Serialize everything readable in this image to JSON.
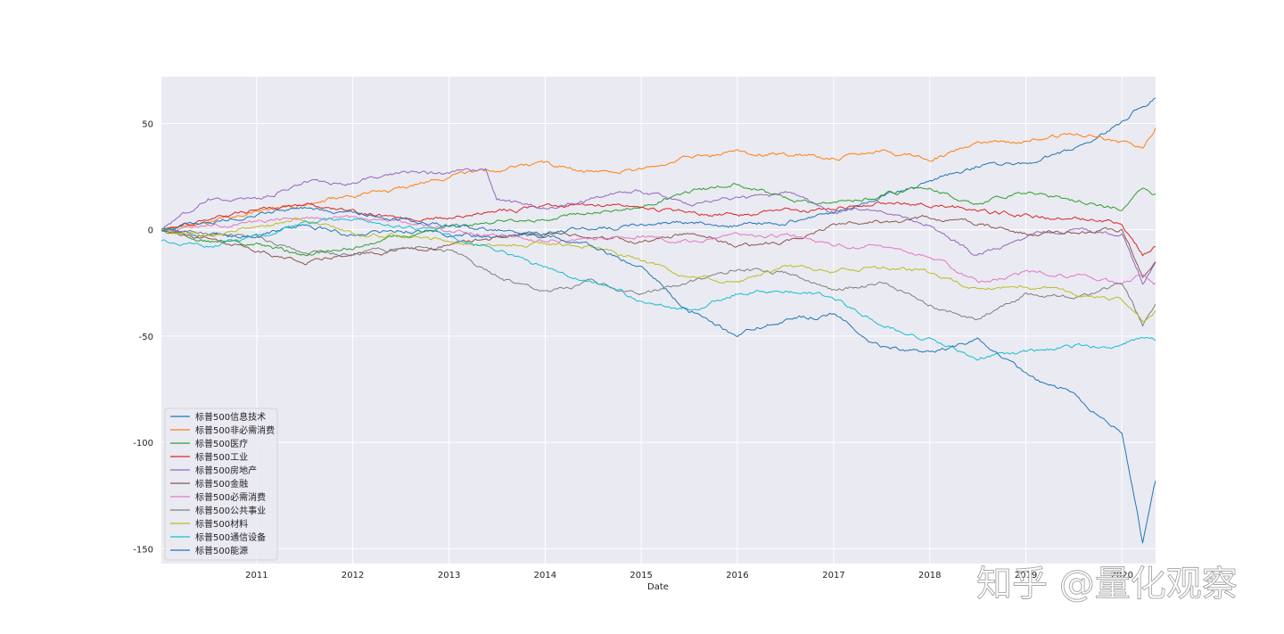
{
  "watermark": "知乎 @量化观察",
  "chart_data": {
    "type": "line",
    "xlabel": "Date",
    "ylabel": "",
    "title": "",
    "x_ticks": [
      "2011",
      "2012",
      "2013",
      "2014",
      "2015",
      "2016",
      "2017",
      "2018",
      "2019",
      "2020"
    ],
    "y_ticks": [
      50,
      0,
      -50,
      -100,
      -150
    ],
    "xlim": [
      "2010-01-04",
      "2020-05-08"
    ],
    "ylim": [
      -157,
      72
    ],
    "grid": true,
    "legend_position": "lower-left",
    "series": [
      {
        "name": "标普500信息技术",
        "color": "#1f77b4",
        "points": [
          [
            "2010-01-04",
            0
          ],
          [
            "2010-07-01",
            -4
          ],
          [
            "2011-01-01",
            -3
          ],
          [
            "2011-07-01",
            2
          ],
          [
            "2012-01-01",
            -2
          ],
          [
            "2012-07-01",
            0
          ],
          [
            "2013-01-01",
            -2
          ],
          [
            "2013-07-01",
            -3
          ],
          [
            "2014-01-01",
            -1
          ],
          [
            "2014-07-01",
            1
          ],
          [
            "2015-01-01",
            2
          ],
          [
            "2015-07-01",
            4
          ],
          [
            "2016-01-01",
            2
          ],
          [
            "2016-07-01",
            4
          ],
          [
            "2017-01-01",
            8
          ],
          [
            "2017-07-01",
            16
          ],
          [
            "2018-01-01",
            23
          ],
          [
            "2018-07-01",
            30
          ],
          [
            "2019-01-01",
            31
          ],
          [
            "2019-07-01",
            38
          ],
          [
            "2020-01-01",
            50
          ],
          [
            "2020-03-01",
            57
          ],
          [
            "2020-05-08",
            62
          ]
        ]
      },
      {
        "name": "标普500非必需消费",
        "color": "#ff7f0e",
        "points": [
          [
            "2010-01-04",
            0
          ],
          [
            "2010-07-01",
            4
          ],
          [
            "2011-01-01",
            9
          ],
          [
            "2011-07-01",
            12
          ],
          [
            "2012-01-01",
            16
          ],
          [
            "2012-07-01",
            19
          ],
          [
            "2013-01-01",
            25
          ],
          [
            "2013-07-01",
            28
          ],
          [
            "2014-01-01",
            31
          ],
          [
            "2014-07-01",
            27
          ],
          [
            "2015-01-01",
            28
          ],
          [
            "2015-07-01",
            34
          ],
          [
            "2016-01-01",
            37
          ],
          [
            "2016-07-01",
            36
          ],
          [
            "2017-01-01",
            34
          ],
          [
            "2017-07-01",
            37
          ],
          [
            "2018-01-01",
            33
          ],
          [
            "2018-07-01",
            41
          ],
          [
            "2019-01-01",
            42
          ],
          [
            "2019-07-01",
            45
          ],
          [
            "2020-01-01",
            41
          ],
          [
            "2020-03-20",
            38
          ],
          [
            "2020-05-08",
            48
          ]
        ]
      },
      {
        "name": "标普500医疗",
        "color": "#2ca02c",
        "points": [
          [
            "2010-01-04",
            0
          ],
          [
            "2010-07-01",
            -5
          ],
          [
            "2011-01-01",
            -7
          ],
          [
            "2011-07-01",
            -12
          ],
          [
            "2012-01-01",
            -8
          ],
          [
            "2012-07-01",
            -3
          ],
          [
            "2013-01-01",
            2
          ],
          [
            "2013-07-01",
            4
          ],
          [
            "2014-01-01",
            5
          ],
          [
            "2014-07-01",
            8
          ],
          [
            "2015-01-01",
            12
          ],
          [
            "2015-07-01",
            18
          ],
          [
            "2016-01-01",
            22
          ],
          [
            "2016-07-01",
            14
          ],
          [
            "2017-01-01",
            12
          ],
          [
            "2017-07-01",
            16
          ],
          [
            "2018-01-01",
            20
          ],
          [
            "2018-07-01",
            12
          ],
          [
            "2019-01-01",
            18
          ],
          [
            "2019-07-01",
            14
          ],
          [
            "2020-01-01",
            10
          ],
          [
            "2020-03-20",
            20
          ],
          [
            "2020-05-08",
            17
          ]
        ]
      },
      {
        "name": "标普500工业",
        "color": "#d62728",
        "points": [
          [
            "2010-01-04",
            0
          ],
          [
            "2010-07-01",
            5
          ],
          [
            "2011-01-01",
            9
          ],
          [
            "2011-07-01",
            12
          ],
          [
            "2012-01-01",
            8
          ],
          [
            "2012-07-01",
            5
          ],
          [
            "2013-01-01",
            6
          ],
          [
            "2013-07-01",
            9
          ],
          [
            "2014-01-01",
            11
          ],
          [
            "2014-07-01",
            12
          ],
          [
            "2015-01-01",
            10
          ],
          [
            "2015-07-01",
            8
          ],
          [
            "2016-01-01",
            7
          ],
          [
            "2016-07-01",
            9
          ],
          [
            "2017-01-01",
            10
          ],
          [
            "2017-07-01",
            13
          ],
          [
            "2018-01-01",
            12
          ],
          [
            "2018-07-01",
            9
          ],
          [
            "2019-01-01",
            7
          ],
          [
            "2019-07-01",
            5
          ],
          [
            "2020-01-01",
            3
          ],
          [
            "2020-03-20",
            -12
          ],
          [
            "2020-05-08",
            -8
          ]
        ]
      },
      {
        "name": "标普500房地产",
        "color": "#9467bd",
        "points": [
          [
            "2010-01-04",
            0
          ],
          [
            "2010-07-01",
            15
          ],
          [
            "2011-01-01",
            14
          ],
          [
            "2011-07-01",
            22
          ],
          [
            "2012-01-01",
            22
          ],
          [
            "2012-07-01",
            27
          ],
          [
            "2013-01-01",
            26
          ],
          [
            "2013-05-20",
            28
          ],
          [
            "2013-07-01",
            14
          ],
          [
            "2014-01-01",
            10
          ],
          [
            "2014-07-01",
            15
          ],
          [
            "2015-01-01",
            18
          ],
          [
            "2015-07-01",
            12
          ],
          [
            "2016-01-01",
            14
          ],
          [
            "2016-07-01",
            17
          ],
          [
            "2017-01-01",
            8
          ],
          [
            "2017-07-01",
            10
          ],
          [
            "2018-01-01",
            3
          ],
          [
            "2018-07-01",
            -12
          ],
          [
            "2019-01-01",
            -3
          ],
          [
            "2019-07-01",
            0
          ],
          [
            "2020-01-01",
            -2
          ],
          [
            "2020-03-20",
            -25
          ],
          [
            "2020-05-08",
            -15
          ]
        ]
      },
      {
        "name": "标普500金融",
        "color": "#8c564b",
        "points": [
          [
            "2010-01-04",
            0
          ],
          [
            "2010-07-01",
            -4
          ],
          [
            "2011-01-01",
            -10
          ],
          [
            "2011-07-01",
            -15
          ],
          [
            "2012-01-01",
            -12
          ],
          [
            "2012-07-01",
            -10
          ],
          [
            "2013-01-01",
            -6
          ],
          [
            "2013-07-01",
            -4
          ],
          [
            "2014-01-01",
            -2
          ],
          [
            "2014-07-01",
            -3
          ],
          [
            "2015-01-01",
            -5
          ],
          [
            "2015-07-01",
            -2
          ],
          [
            "2016-01-01",
            -8
          ],
          [
            "2016-07-01",
            -6
          ],
          [
            "2017-01-01",
            2
          ],
          [
            "2017-07-01",
            4
          ],
          [
            "2018-01-01",
            6
          ],
          [
            "2018-07-01",
            3
          ],
          [
            "2019-01-01",
            -2
          ],
          [
            "2019-07-01",
            -1
          ],
          [
            "2020-01-01",
            0
          ],
          [
            "2020-03-20",
            -22
          ],
          [
            "2020-05-08",
            -15
          ]
        ]
      },
      {
        "name": "标普500必需消费",
        "color": "#e377c2",
        "points": [
          [
            "2010-01-04",
            0
          ],
          [
            "2010-07-01",
            2
          ],
          [
            "2011-01-01",
            4
          ],
          [
            "2011-07-01",
            6
          ],
          [
            "2012-01-01",
            5
          ],
          [
            "2012-07-01",
            3
          ],
          [
            "2013-01-01",
            0
          ],
          [
            "2013-07-01",
            -3
          ],
          [
            "2014-01-01",
            -5
          ],
          [
            "2014-07-01",
            -4
          ],
          [
            "2015-01-01",
            -3
          ],
          [
            "2015-07-01",
            -5
          ],
          [
            "2016-01-01",
            -2
          ],
          [
            "2016-07-01",
            -3
          ],
          [
            "2017-01-01",
            -8
          ],
          [
            "2017-07-01",
            -7
          ],
          [
            "2018-01-01",
            -12
          ],
          [
            "2018-07-01",
            -25
          ],
          [
            "2019-01-01",
            -20
          ],
          [
            "2019-07-01",
            -22
          ],
          [
            "2020-01-01",
            -25
          ],
          [
            "2020-03-20",
            -20
          ],
          [
            "2020-05-08",
            -25
          ]
        ]
      },
      {
        "name": "标普500公共事业",
        "color": "#7f7f7f",
        "points": [
          [
            "2010-01-04",
            0
          ],
          [
            "2010-07-01",
            -3
          ],
          [
            "2011-01-01",
            -4
          ],
          [
            "2011-07-01",
            -10
          ],
          [
            "2012-01-01",
            -12
          ],
          [
            "2012-07-01",
            -8
          ],
          [
            "2013-01-01",
            -10
          ],
          [
            "2013-07-01",
            -22
          ],
          [
            "2014-01-01",
            -30
          ],
          [
            "2014-07-01",
            -25
          ],
          [
            "2015-01-01",
            -30
          ],
          [
            "2015-07-01",
            -25
          ],
          [
            "2016-01-01",
            -18
          ],
          [
            "2016-07-01",
            -20
          ],
          [
            "2017-01-01",
            -28
          ],
          [
            "2017-07-01",
            -25
          ],
          [
            "2018-01-01",
            -35
          ],
          [
            "2018-07-01",
            -42
          ],
          [
            "2019-01-01",
            -30
          ],
          [
            "2019-07-01",
            -32
          ],
          [
            "2020-01-01",
            -25
          ],
          [
            "2020-03-20",
            -45
          ],
          [
            "2020-05-08",
            -35
          ]
        ]
      },
      {
        "name": "标普500材料",
        "color": "#bcbd22",
        "points": [
          [
            "2010-01-04",
            0
          ],
          [
            "2010-07-01",
            -3
          ],
          [
            "2011-01-01",
            2
          ],
          [
            "2011-07-01",
            5
          ],
          [
            "2012-01-01",
            -2
          ],
          [
            "2012-07-01",
            -3
          ],
          [
            "2013-01-01",
            -5
          ],
          [
            "2013-07-01",
            -8
          ],
          [
            "2014-01-01",
            -6
          ],
          [
            "2014-07-01",
            -8
          ],
          [
            "2015-01-01",
            -15
          ],
          [
            "2015-07-01",
            -22
          ],
          [
            "2016-01-01",
            -25
          ],
          [
            "2016-07-01",
            -18
          ],
          [
            "2017-01-01",
            -20
          ],
          [
            "2017-07-01",
            -17
          ],
          [
            "2018-01-01",
            -20
          ],
          [
            "2018-07-01",
            -28
          ],
          [
            "2019-01-01",
            -27
          ],
          [
            "2019-07-01",
            -30
          ],
          [
            "2020-01-01",
            -33
          ],
          [
            "2020-03-20",
            -42
          ],
          [
            "2020-05-08",
            -38
          ]
        ]
      },
      {
        "name": "标普500通信设备",
        "color": "#17becf",
        "points": [
          [
            "2010-01-04",
            -5
          ],
          [
            "2010-07-01",
            -8
          ],
          [
            "2011-01-01",
            -3
          ],
          [
            "2011-07-01",
            3
          ],
          [
            "2012-01-01",
            6
          ],
          [
            "2012-07-01",
            2
          ],
          [
            "2013-01-01",
            -2
          ],
          [
            "2013-07-01",
            -10
          ],
          [
            "2014-01-01",
            -18
          ],
          [
            "2014-07-01",
            -25
          ],
          [
            "2015-01-01",
            -33
          ],
          [
            "2015-07-01",
            -38
          ],
          [
            "2016-01-01",
            -30
          ],
          [
            "2016-07-01",
            -28
          ],
          [
            "2017-01-01",
            -32
          ],
          [
            "2017-07-01",
            -45
          ],
          [
            "2018-01-01",
            -52
          ],
          [
            "2018-07-01",
            -60
          ],
          [
            "2019-01-01",
            -58
          ],
          [
            "2019-07-01",
            -55
          ],
          [
            "2020-01-01",
            -55
          ],
          [
            "2020-03-20",
            -50
          ],
          [
            "2020-05-08",
            -52
          ]
        ]
      },
      {
        "name": "标普500能源",
        "color": "#1f77b4",
        "points": [
          [
            "2010-01-04",
            0
          ],
          [
            "2010-07-01",
            3
          ],
          [
            "2011-01-01",
            8
          ],
          [
            "2011-07-01",
            10
          ],
          [
            "2012-01-01",
            8
          ],
          [
            "2012-07-01",
            5
          ],
          [
            "2013-01-01",
            2
          ],
          [
            "2013-07-01",
            0
          ],
          [
            "2014-01-01",
            -3
          ],
          [
            "2014-07-01",
            -8
          ],
          [
            "2015-01-01",
            -18
          ],
          [
            "2015-07-01",
            -38
          ],
          [
            "2016-01-01",
            -50
          ],
          [
            "2016-07-01",
            -42
          ],
          [
            "2017-01-01",
            -40
          ],
          [
            "2017-07-01",
            -55
          ],
          [
            "2018-01-01",
            -58
          ],
          [
            "2018-07-01",
            -52
          ],
          [
            "2019-01-01",
            -68
          ],
          [
            "2019-07-01",
            -78
          ],
          [
            "2020-01-01",
            -95
          ],
          [
            "2020-03-20",
            -148
          ],
          [
            "2020-05-08",
            -118
          ]
        ]
      }
    ]
  }
}
